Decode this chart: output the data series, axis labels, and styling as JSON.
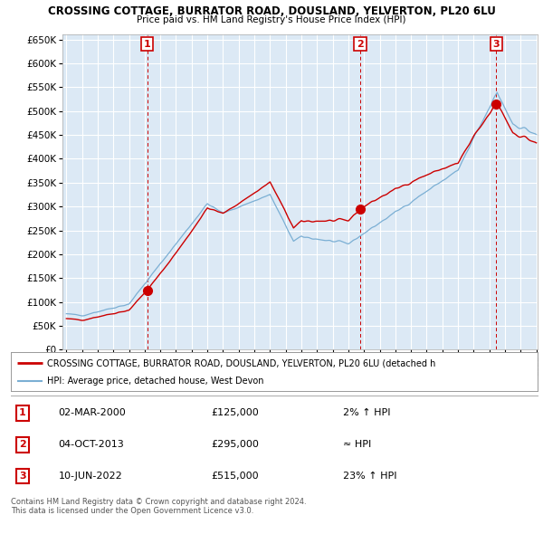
{
  "title": "CROSSING COTTAGE, BURRATOR ROAD, DOUSLAND, YELVERTON, PL20 6LU",
  "subtitle": "Price paid vs. HM Land Registry's House Price Index (HPI)",
  "bg_color": "#ffffff",
  "plot_bg_color": "#dce9f5",
  "grid_color": "#ffffff",
  "ylim": [
    0,
    660000
  ],
  "yticks": [
    0,
    50000,
    100000,
    150000,
    200000,
    250000,
    300000,
    350000,
    400000,
    450000,
    500000,
    550000,
    600000,
    650000
  ],
  "x_start_year": 1995,
  "x_end_year": 2025,
  "hpi_color": "#7bafd4",
  "price_color": "#cc0000",
  "vline_color": "#cc0000",
  "transactions": [
    {
      "year": 2000.17,
      "price": 125000,
      "label": "1"
    },
    {
      "year": 2013.75,
      "price": 295000,
      "label": "2"
    },
    {
      "year": 2022.44,
      "price": 515000,
      "label": "3"
    }
  ],
  "legend_price_label": "CROSSING COTTAGE, BURRATOR ROAD, DOUSLAND, YELVERTON, PL20 6LU (detached h",
  "legend_hpi_label": "HPI: Average price, detached house, West Devon",
  "table_rows": [
    {
      "num": "1",
      "date": "02-MAR-2000",
      "price": "£125,000",
      "change": "2% ↑ HPI"
    },
    {
      "num": "2",
      "date": "04-OCT-2013",
      "price": "£295,000",
      "change": "≈ HPI"
    },
    {
      "num": "3",
      "date": "10-JUN-2022",
      "price": "£515,000",
      "change": "23% ↑ HPI"
    }
  ],
  "footer": "Contains HM Land Registry data © Crown copyright and database right 2024.\nThis data is licensed under the Open Government Licence v3.0."
}
